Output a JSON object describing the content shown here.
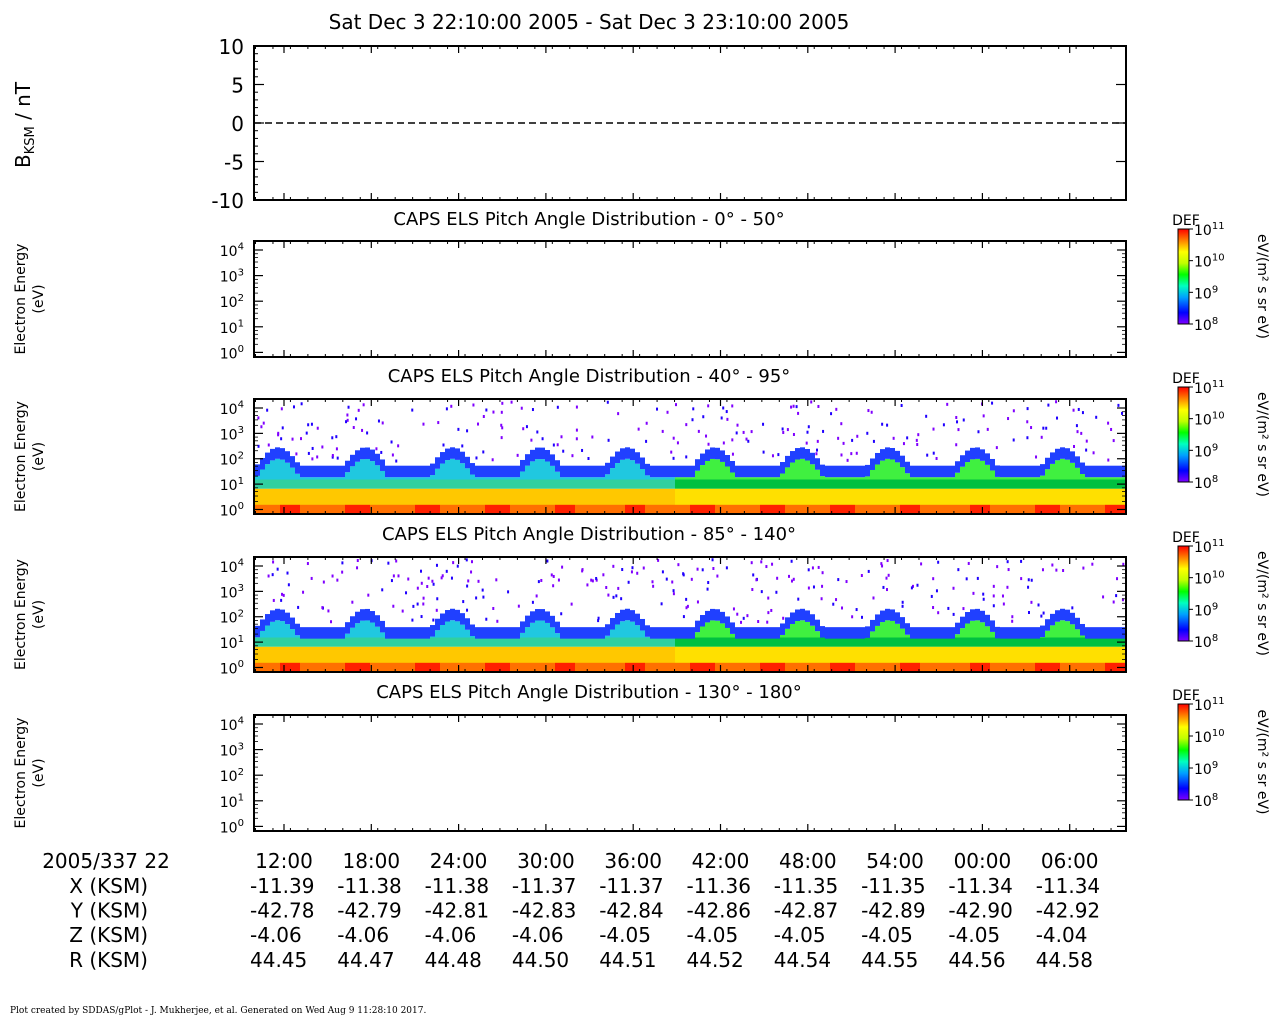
{
  "header": {
    "title": "Sat Dec 3 22:10:00 2005 - Sat Dec 3 23:10:00 2005"
  },
  "chart_data": [
    {
      "type": "line",
      "title": "",
      "ylabel_main": "B",
      "ylabel_sub": "KSM",
      "ylabel_unit": " / nT",
      "ylim": [
        -10,
        10
      ],
      "yticks": [
        "10",
        "5",
        "0",
        "-5",
        "-10"
      ],
      "series": [
        {
          "values": [
            0,
            0
          ],
          "style": "dashed"
        }
      ]
    },
    {
      "type": "heatmap",
      "title": "CAPS ELS Pitch Angle Distribution - 0° - 50°",
      "ylabel": [
        "Electron Energy",
        "(eV)"
      ],
      "has_data": false
    },
    {
      "type": "heatmap",
      "title": "CAPS ELS Pitch Angle Distribution - 40° - 95°",
      "ylabel": [
        "Electron Energy",
        "(eV)"
      ],
      "has_data": true
    },
    {
      "type": "heatmap",
      "title": "CAPS ELS Pitch Angle Distribution - 85° - 140°",
      "ylabel": [
        "Electron Energy",
        "(eV)"
      ],
      "has_data": true
    },
    {
      "type": "heatmap",
      "title": "CAPS ELS Pitch Angle Distribution - 130° - 180°",
      "ylabel": [
        "Electron Energy",
        "(eV)"
      ],
      "has_data": false
    }
  ],
  "energy_axis": {
    "exponents": [
      "4",
      "3",
      "2",
      "1",
      "0"
    ],
    "base": "10"
  },
  "colorbar": {
    "label": "DEF",
    "unit": "eV/(m² s sr eV)",
    "exponents": [
      "11",
      "10",
      "9",
      "8"
    ],
    "base": "10",
    "colors": [
      "#8000ff",
      "#0000ff",
      "#00a0ff",
      "#00ffc0",
      "#00ff00",
      "#c0ff00",
      "#ffff00",
      "#ff8000",
      "#ff0000"
    ]
  },
  "ephemeris": {
    "start_label": "2005/337 22",
    "times": [
      "12:00",
      "18:00",
      "24:00",
      "30:00",
      "36:00",
      "42:00",
      "48:00",
      "54:00",
      "00:00",
      "06:00"
    ],
    "rows": [
      {
        "label": "X (KSM)",
        "values": [
          "-11.39",
          "-11.38",
          "-11.38",
          "-11.37",
          "-11.37",
          "-11.36",
          "-11.35",
          "-11.35",
          "-11.34",
          "-11.34"
        ]
      },
      {
        "label": "Y (KSM)",
        "values": [
          "-42.78",
          "-42.79",
          "-42.81",
          "-42.83",
          "-42.84",
          "-42.86",
          "-42.87",
          "-42.89",
          "-42.90",
          "-42.92"
        ]
      },
      {
        "label": "Z (KSM)",
        "values": [
          "-4.06",
          "-4.06",
          "-4.06",
          "-4.06",
          "-4.05",
          "-4.05",
          "-4.05",
          "-4.05",
          "-4.05",
          "-4.04"
        ]
      },
      {
        "label": "R (KSM)",
        "values": [
          "44.45",
          "44.47",
          "44.48",
          "44.50",
          "44.51",
          "44.52",
          "44.54",
          "44.55",
          "44.56",
          "44.58"
        ]
      }
    ]
  },
  "footer": "Plot created by SDDAS/gPlot - J. Mukherjee, et al.  Generated on Wed Aug 9 11:28:10 2017."
}
